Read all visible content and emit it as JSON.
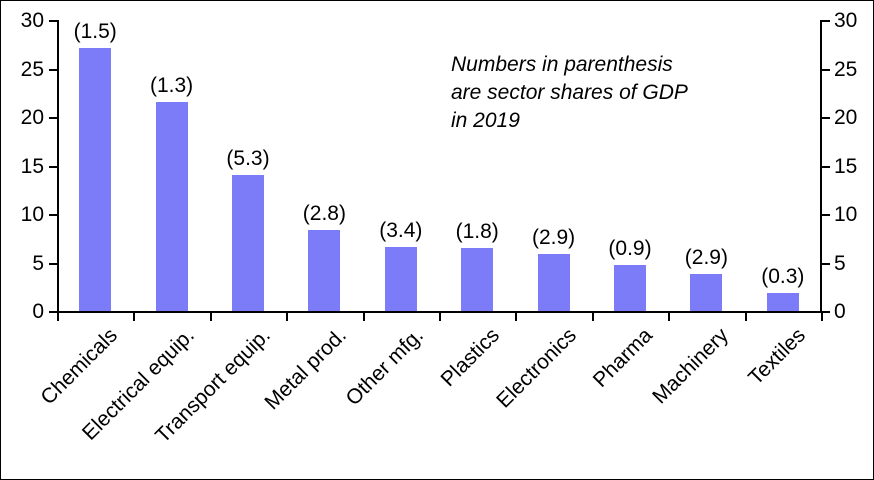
{
  "chart_data": {
    "type": "bar",
    "title": "",
    "xlabel": "",
    "ylabel": "",
    "categories": [
      "Chemicals",
      "Electrical equip.",
      "Transport equip.",
      "Metal prod.",
      "Other mfg.",
      "Plastics",
      "Electronics",
      "Pharma",
      "Machinery",
      "Textiles"
    ],
    "values": [
      27.1,
      21.5,
      14.0,
      8.4,
      6.6,
      6.5,
      5.9,
      4.7,
      3.8,
      1.9
    ],
    "bar_labels": [
      "(1.5)",
      "(1.3)",
      "(5.3)",
      "(2.8)",
      "(3.4)",
      "(1.8)",
      "(2.9)",
      "(0.9)",
      "(2.9)",
      "(0.3)"
    ],
    "gdp_shares_2019": [
      1.5,
      1.3,
      5.3,
      2.8,
      3.4,
      1.8,
      2.9,
      0.9,
      2.9,
      0.3
    ],
    "annotation": "Numbers in parenthesis\nare sector shares of GDP\nin 2019",
    "yticks": [
      0,
      5,
      10,
      15,
      20,
      25,
      30
    ],
    "ylim": [
      0,
      30
    ],
    "dual_axis": true,
    "grid": false,
    "legend_position": "none",
    "bar_color": "#7c7cf8",
    "axis_color": "#000000",
    "text_color": "#000000"
  }
}
